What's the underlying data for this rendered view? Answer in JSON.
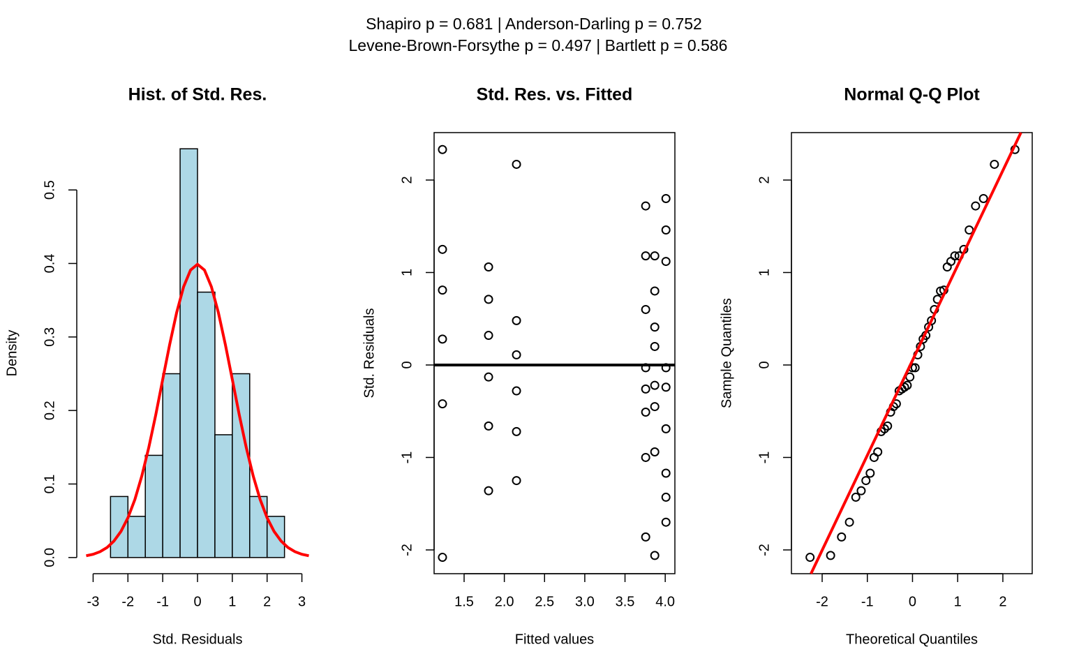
{
  "suptitle": [
    "Shapiro p = 0.681 | Anderson-Darling p = 0.752",
    "Levene-Brown-Forsythe p = 0.497 | Bartlett p = 0.586"
  ],
  "chart_data": [
    {
      "type": "histogram",
      "title": "Hist. of Std. Res.",
      "xlabel": "Std. Residuals",
      "ylabel": "Density",
      "bins": [
        -2.5,
        -2,
        -1.5,
        -1,
        -0.5,
        0,
        0.5,
        1,
        1.5,
        2,
        2.5
      ],
      "values": [
        0.083,
        0.056,
        0.139,
        0.25,
        0.556,
        0.361,
        0.167,
        0.25,
        0.083,
        0.056
      ],
      "color": "#add8e6",
      "curve": {
        "color": "#ff0000",
        "x": [
          -3.2,
          -3.0,
          -2.8,
          -2.6,
          -2.4,
          -2.2,
          -2.0,
          -1.8,
          -1.6,
          -1.4,
          -1.2,
          -1.0,
          -0.8,
          -0.6,
          -0.4,
          -0.2,
          0,
          0.2,
          0.4,
          0.6,
          0.8,
          1.0,
          1.2,
          1.4,
          1.6,
          1.8,
          2.0,
          2.2,
          2.4,
          2.6,
          2.8,
          3.0,
          3.2
        ],
        "y": [
          0.0024,
          0.0044,
          0.0079,
          0.0136,
          0.0224,
          0.0355,
          0.054,
          0.079,
          0.1109,
          0.1497,
          0.1942,
          0.242,
          0.2897,
          0.3332,
          0.3683,
          0.391,
          0.3989,
          0.391,
          0.3683,
          0.3332,
          0.2897,
          0.242,
          0.1942,
          0.1497,
          0.1109,
          0.079,
          0.054,
          0.0355,
          0.0224,
          0.0136,
          0.0079,
          0.0044,
          0.0024
        ]
      },
      "xlim": [
        -3.47,
        3.47
      ],
      "ylim": [
        -0.022,
        0.578
      ],
      "xticks": [
        -3,
        -2,
        -1,
        0,
        1,
        2,
        3
      ],
      "yticks": [
        {
          "value": 0,
          "label": "0.0"
        },
        0.1,
        0.2,
        0.3,
        0.4,
        0.5
      ],
      "frame": false
    },
    {
      "type": "scatter",
      "title": "Std. Res. vs. Fitted",
      "xlabel": "Fitted values",
      "ylabel": "Std. Residuals",
      "x": [
        1.231,
        1.231,
        1.231,
        1.231,
        1.231,
        1.231,
        1.804,
        1.804,
        1.804,
        1.804,
        1.804,
        1.804,
        2.151,
        2.151,
        2.151,
        2.151,
        2.151,
        2.151,
        3.757,
        3.757,
        3.757,
        3.757,
        3.757,
        3.757,
        3.757,
        3.757,
        3.87,
        3.87,
        3.87,
        3.87,
        3.87,
        3.87,
        3.87,
        3.87,
        4.009,
        4.009,
        4.009,
        4.009,
        4.009,
        4.009,
        4.009,
        4.009,
        4.009
      ],
      "y": [
        2.33,
        1.25,
        0.81,
        0.28,
        -0.42,
        -2.08,
        1.06,
        0.71,
        0.32,
        -0.13,
        -0.66,
        -1.36,
        2.17,
        0.48,
        0.11,
        -0.28,
        -0.72,
        -1.25,
        1.72,
        1.18,
        0.6,
        -0.03,
        -0.26,
        -0.51,
        -1.0,
        -1.86,
        1.18,
        0.8,
        0.41,
        0.2,
        -0.22,
        -0.45,
        -0.94,
        -2.06,
        1.8,
        1.46,
        1.12,
        -0.03,
        -0.24,
        -0.69,
        -1.17,
        -1.43,
        -1.7
      ],
      "color": "#000000",
      "hline": 0,
      "xlim": [
        1.127,
        4.12
      ],
      "ylim": [
        -2.257,
        2.513
      ],
      "xticks": [
        1.5,
        {
          "value": 2,
          "label": "2.0"
        },
        2.5,
        {
          "value": 3,
          "label": "3.0"
        },
        3.5,
        {
          "value": 4,
          "label": "4.0"
        }
      ],
      "yticks": [
        -2,
        -1,
        0,
        1,
        2
      ],
      "frame": true
    },
    {
      "type": "qq",
      "title": "Normal Q-Q Plot",
      "xlabel": "Theoretical Quantiles",
      "ylabel": "Sample Quantiles",
      "x": [
        -2.268,
        -1.813,
        -1.571,
        -1.396,
        -1.255,
        -1.136,
        -1.031,
        -0.937,
        -0.85,
        -0.769,
        -0.693,
        -0.62,
        -0.552,
        -0.485,
        -0.42,
        -0.357,
        -0.296,
        -0.235,
        -0.176,
        -0.117,
        -0.058,
        0,
        0.058,
        0.117,
        0.176,
        0.235,
        0.296,
        0.357,
        0.42,
        0.485,
        0.552,
        0.62,
        0.693,
        0.769,
        0.85,
        0.937,
        1.031,
        1.136,
        1.255,
        1.396,
        1.571,
        1.813,
        2.268
      ],
      "y": [
        -2.08,
        -2.06,
        -1.86,
        -1.7,
        -1.43,
        -1.36,
        -1.25,
        -1.17,
        -1.0,
        -0.94,
        -0.72,
        -0.69,
        -0.66,
        -0.51,
        -0.45,
        -0.42,
        -0.28,
        -0.26,
        -0.24,
        -0.22,
        -0.13,
        -0.03,
        -0.03,
        0.11,
        0.2,
        0.28,
        0.32,
        0.41,
        0.48,
        0.6,
        0.71,
        0.8,
        0.81,
        1.06,
        1.12,
        1.18,
        1.18,
        1.25,
        1.46,
        1.72,
        1.8,
        2.17,
        2.33
      ],
      "color": "#000000",
      "line": {
        "color": "#ff0000",
        "x": [
          -2.247,
          2.4
        ],
        "y": [
          -2.257,
          2.513
        ]
      },
      "xlim": [
        -2.68,
        2.65
      ],
      "ylim": [
        -2.257,
        2.513
      ],
      "xticks": [
        -2,
        -1,
        0,
        1,
        2
      ],
      "yticks": [
        -2,
        -1,
        0,
        1,
        2
      ],
      "frame": true
    }
  ]
}
